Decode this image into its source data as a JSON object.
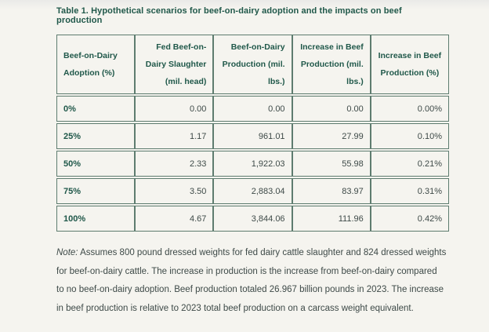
{
  "title": "Table 1. Hypothetical scenarios for beef-on-dairy adoption and the impacts on beef production",
  "table": {
    "columns": [
      {
        "label": "Beef-on-Dairy\nAdoption (%)",
        "header_align": "left",
        "cell_align": "left"
      },
      {
        "label": "Fed Beef-on-\nDairy Slaughter\n(mil. head)",
        "header_align": "right",
        "cell_align": "right"
      },
      {
        "label": "Beef-on-Dairy\nProduction (mil.\nlbs.)",
        "header_align": "right",
        "cell_align": "right"
      },
      {
        "label": "Increase in Beef\nProduction (mil.\nlbs.)",
        "header_align": "right",
        "cell_align": "right"
      },
      {
        "label": "Increase in Beef\nProduction (%)",
        "header_align": "center",
        "cell_align": "right"
      }
    ],
    "rows": [
      [
        "0%",
        "0.00",
        "0.00",
        "0.00",
        "0.00%"
      ],
      [
        "25%",
        "1.17",
        "961.01",
        "27.99",
        "0.10%"
      ],
      [
        "50%",
        "2.33",
        "1,922.03",
        "55.98",
        "0.21%"
      ],
      [
        "75%",
        "3.50",
        "2,883.04",
        "83.97",
        "0.31%"
      ],
      [
        "100%",
        "4.67",
        "3,844.06",
        "111.96",
        "0.42%"
      ]
    ]
  },
  "note": {
    "label": "Note:",
    "text": "Assumes 800 pound dressed weights for fed dairy cattle slaughter and 824 dressed weights for beef-on-dairy cattle. The increase in production is the increase from beef-on-dairy compared to no beef-on-dairy adoption. Beef production totaled 26.967 billion pounds in 2023. The increase in beef production is relative to 2023 total beef production on a carcass weight equivalent."
  },
  "colors": {
    "accent_green": "#20584a",
    "body_text": "#3e4a48",
    "table_border": "#5e7c6f",
    "page_background": "#f5f4ef"
  }
}
